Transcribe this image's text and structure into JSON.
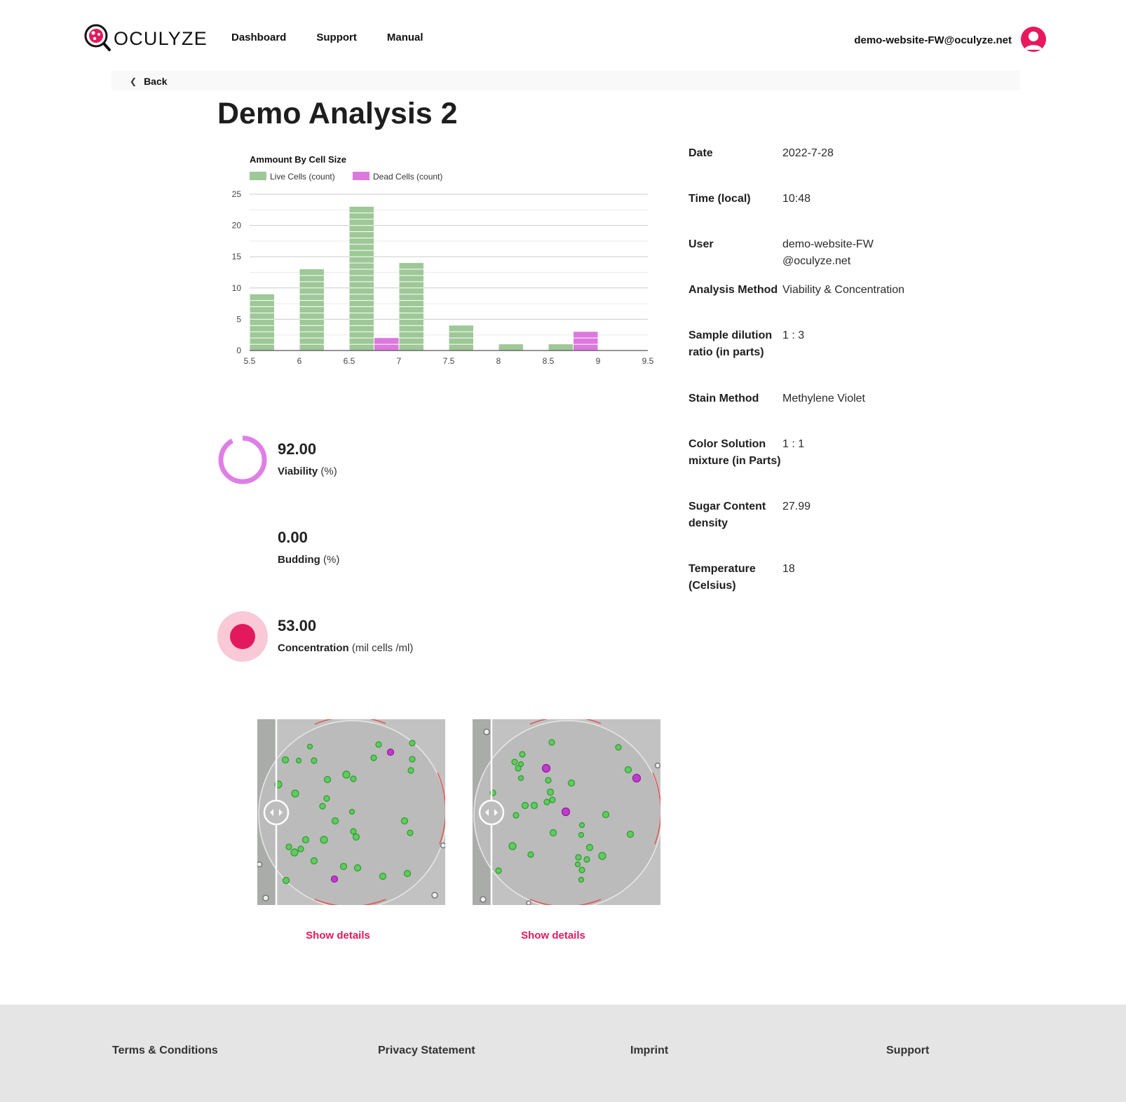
{
  "header": {
    "brand": "OCULYZE",
    "nav": [
      "Dashboard",
      "Support",
      "Manual"
    ],
    "user_email": "demo-website-FW@oculyze.net"
  },
  "back_label": "Back",
  "title": "Demo Analysis 2",
  "chart_data": {
    "type": "bar",
    "title": "Ammount By Cell Size",
    "xlabel": "",
    "ylabel": "",
    "x_ticks": [
      "5.5",
      "6",
      "6.5",
      "7",
      "7.5",
      "8",
      "8.5",
      "9",
      "9.5"
    ],
    "y_ticks": [
      "0",
      "5",
      "10",
      "15",
      "20",
      "25"
    ],
    "ylim": [
      0,
      25
    ],
    "xlim": [
      5.5,
      9.5
    ],
    "bin_width": 0.25,
    "series": [
      {
        "name": "Live Cells (count)",
        "color": "#9ec897",
        "bins": [
          {
            "x": 5.5,
            "value": 9
          },
          {
            "x": 6.0,
            "value": 13
          },
          {
            "x": 6.5,
            "value": 23
          },
          {
            "x": 7.0,
            "value": 14
          },
          {
            "x": 7.5,
            "value": 4
          },
          {
            "x": 8.0,
            "value": 1
          },
          {
            "x": 8.5,
            "value": 1
          }
        ]
      },
      {
        "name": "Dead Cells (count)",
        "color": "#dd78de",
        "bins": [
          {
            "x": 6.75,
            "value": 2
          },
          {
            "x": 8.75,
            "value": 3
          }
        ]
      }
    ],
    "grid": true,
    "legend_position": "top-left"
  },
  "metrics": {
    "viability": {
      "value": "92.00",
      "label": "Viability",
      "unit": "(%)",
      "percent": 92
    },
    "budding": {
      "value": "0.00",
      "label": "Budding",
      "unit": "(%)"
    },
    "concentration": {
      "value": "53.00",
      "label": "Concentration",
      "unit": "(mil cells /ml)"
    }
  },
  "info": [
    {
      "label": "Date",
      "value": "2022-7-28"
    },
    {
      "label": "Time (local)",
      "value": "10:48"
    },
    {
      "label": "User",
      "value": "demo-website-FW@oculyze.net"
    },
    {
      "label": "Analysis Method",
      "value": "Viability & Concentration"
    },
    {
      "label": "Sample dilution ratio (in parts)",
      "value": "1 : 3"
    },
    {
      "label": "Stain Method",
      "value": "Methylene Violet"
    },
    {
      "label": "Color Solution mixture (in Parts)",
      "value": "1 : 1"
    },
    {
      "label": "Sugar Content density",
      "value": "27.99"
    },
    {
      "label": "Temperature (Celsius)",
      "value": "18"
    }
  ],
  "images": [
    {
      "show_details": "Show details"
    },
    {
      "show_details": "Show details"
    }
  ],
  "footer": [
    "Terms & Conditions",
    "Privacy Statement",
    "Imprint",
    "Support"
  ],
  "colors": {
    "accent": "#e3195d",
    "live": "#9ec897",
    "dead": "#dd78de",
    "viability_ring": "#df7fe6"
  }
}
